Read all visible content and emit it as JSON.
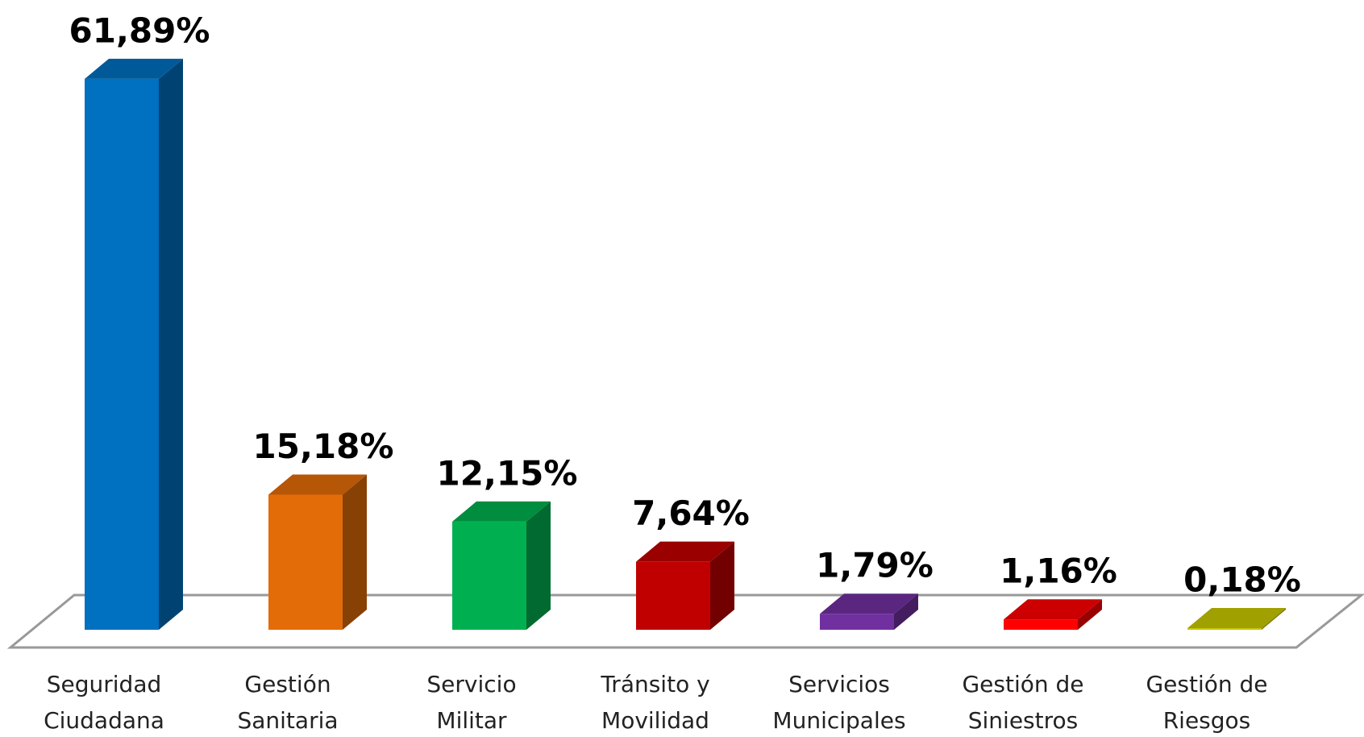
{
  "chart_data": {
    "type": "bar3d",
    "categories": [
      [
        "Seguridad",
        "Ciudadana"
      ],
      [
        "Gestión",
        "Sanitaria"
      ],
      [
        "Servicio",
        "Militar"
      ],
      [
        "Tránsito y",
        "Movilidad"
      ],
      [
        "Servicios",
        "Municipales"
      ],
      [
        "Gestión de",
        "Siniestros"
      ],
      [
        "Gestión de",
        "Riesgos"
      ]
    ],
    "values": [
      61.89,
      15.18,
      12.15,
      7.64,
      1.79,
      1.16,
      0.18
    ],
    "value_labels": [
      "61,89%",
      "15,18%",
      "12,15%",
      "7,64%",
      "1,79%",
      "1,16%",
      "0,18%"
    ],
    "colors": [
      "#0070c0",
      "#e36c09",
      "#00b050",
      "#c00000",
      "#7030a0",
      "#ff0000",
      "#c8c800"
    ]
  }
}
